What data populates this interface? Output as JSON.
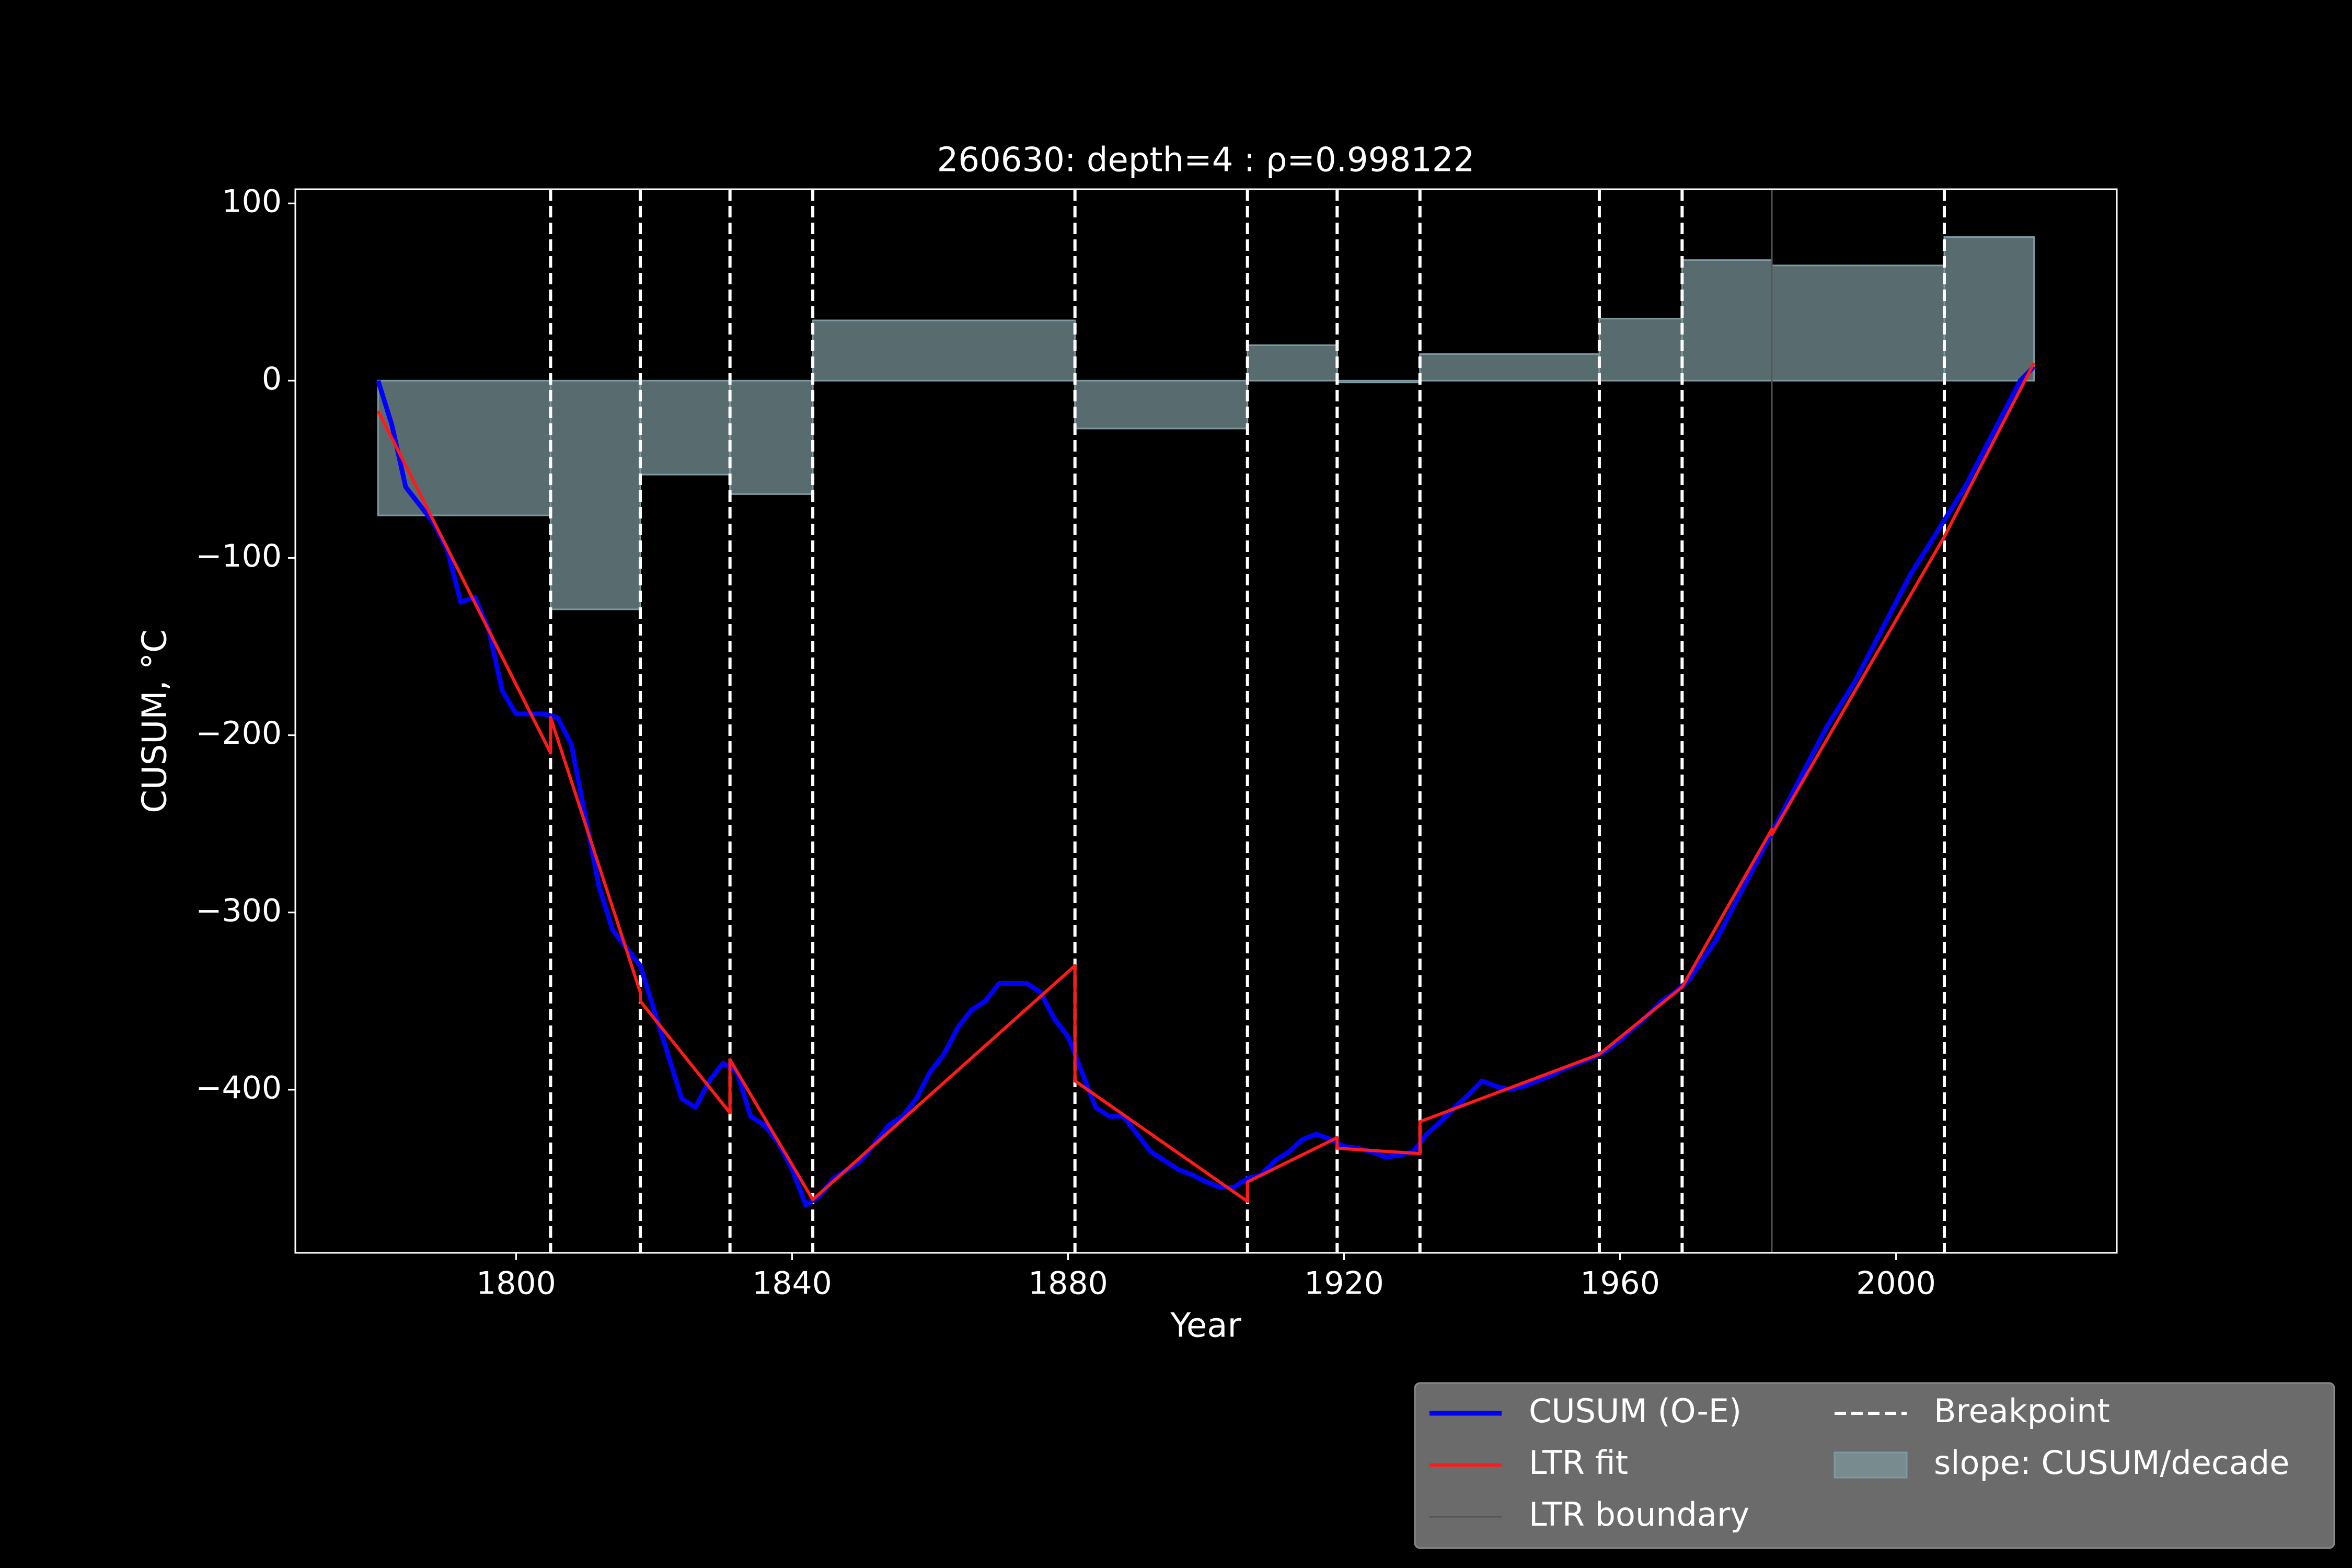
{
  "chart_data": {
    "type": "line",
    "title": "260630: depth=4 : ρ=0.998122",
    "xlabel": "Year",
    "ylabel": "CUSUM, °C",
    "xlim": [
      1768,
      2032
    ],
    "ylim": [
      -492,
      108
    ],
    "xticks": [
      1800,
      1840,
      1880,
      1920,
      1960,
      2000
    ],
    "yticks": [
      {
        "value": -400,
        "label": "−400"
      },
      {
        "value": -300,
        "label": "−300"
      },
      {
        "value": -200,
        "label": "−200"
      },
      {
        "value": -100,
        "label": "−100"
      },
      0,
      100
    ],
    "legend": "below right",
    "series": [
      {
        "name": "CUSUM (O-E)",
        "color": "#0000ff",
        "x": [
          1780,
          1782,
          1784,
          1786,
          1788,
          1790,
          1792,
          1794,
          1796,
          1798,
          1800,
          1802,
          1804,
          1806,
          1808,
          1810,
          1812,
          1814,
          1816,
          1818,
          1820,
          1822,
          1824,
          1826,
          1828,
          1830,
          1832,
          1834,
          1836,
          1838,
          1840,
          1842,
          1844,
          1846,
          1848,
          1850,
          1852,
          1854,
          1856,
          1858,
          1860,
          1862,
          1864,
          1866,
          1868,
          1870,
          1872,
          1874,
          1876,
          1878,
          1880,
          1882,
          1884,
          1886,
          1888,
          1890,
          1892,
          1894,
          1896,
          1898,
          1900,
          1902,
          1904,
          1906,
          1908,
          1910,
          1912,
          1914,
          1916,
          1918,
          1920,
          1922,
          1924,
          1926,
          1928,
          1930,
          1932,
          1934,
          1936,
          1938,
          1940,
          1942,
          1944,
          1946,
          1948,
          1950,
          1952,
          1954,
          1956,
          1958,
          1960,
          1962,
          1964,
          1966,
          1968,
          1970,
          1974,
          1978,
          1982,
          1986,
          1990,
          1994,
          1998,
          2002,
          2006,
          2010,
          2014,
          2018,
          2020
        ],
        "values": [
          0,
          -25,
          -60,
          -70,
          -80,
          -95,
          -125,
          -122,
          -140,
          -175,
          -188,
          -188,
          -188,
          -190,
          -205,
          -245,
          -285,
          -310,
          -320,
          -330,
          -355,
          -380,
          -405,
          -410,
          -395,
          -385,
          -390,
          -415,
          -420,
          -430,
          -445,
          -465,
          -460,
          -450,
          -445,
          -440,
          -430,
          -420,
          -415,
          -405,
          -390,
          -380,
          -365,
          -355,
          -350,
          -340,
          -340,
          -340,
          -345,
          -360,
          -370,
          -390,
          -410,
          -415,
          -415,
          -425,
          -435,
          -440,
          -445,
          -448,
          -452,
          -455,
          -455,
          -450,
          -448,
          -440,
          -435,
          -428,
          -425,
          -428,
          -432,
          -433,
          -435,
          -438,
          -437,
          -435,
          -425,
          -418,
          -410,
          -403,
          -395,
          -398,
          -400,
          -398,
          -395,
          -392,
          -388,
          -385,
          -382,
          -378,
          -372,
          -365,
          -358,
          -350,
          -345,
          -338,
          -315,
          -285,
          -255,
          -225,
          -195,
          -170,
          -140,
          -110,
          -85,
          -60,
          -30,
          0,
          8
        ]
      },
      {
        "name": "LTR fit",
        "color": "#ff1a1a",
        "x": [
          1780,
          1805,
          1805,
          1818,
          1818,
          1831,
          1831,
          1843,
          1843,
          1881,
          1881,
          1906,
          1906,
          1919,
          1919,
          1931,
          1931,
          1957,
          1957,
          1969,
          1969,
          1982,
          1982,
          2007,
          2007,
          2020
        ],
        "values": [
          -17,
          -210,
          -190,
          -345,
          -350,
          -413,
          -383,
          -462,
          -462,
          -330,
          -395,
          -463,
          -452,
          -427,
          -433,
          -436,
          -418,
          -380,
          -380,
          -342,
          -342,
          -253,
          -256,
          -88,
          -88,
          10
        ]
      }
    ],
    "boundary": {
      "name": "LTR boundary",
      "color": "#555555",
      "x": [
        1982
      ]
    },
    "breakpoints": {
      "name": "Breakpoint",
      "color": "#ffffff",
      "x": [
        1805,
        1818,
        1831,
        1843,
        1881,
        1906,
        1919,
        1931,
        1957,
        1969,
        2007
      ]
    },
    "slope": {
      "name": "slope: CUSUM/decade",
      "color": "#7e9aa0",
      "bins": [
        1780,
        1805,
        1818,
        1831,
        1843,
        1881,
        1906,
        1919,
        1931,
        1957,
        1969,
        1982,
        2007,
        2020
      ],
      "values": [
        -76,
        -129,
        -53,
        -64,
        34,
        -27,
        20,
        -1,
        15,
        35,
        68,
        65,
        81
      ]
    }
  }
}
